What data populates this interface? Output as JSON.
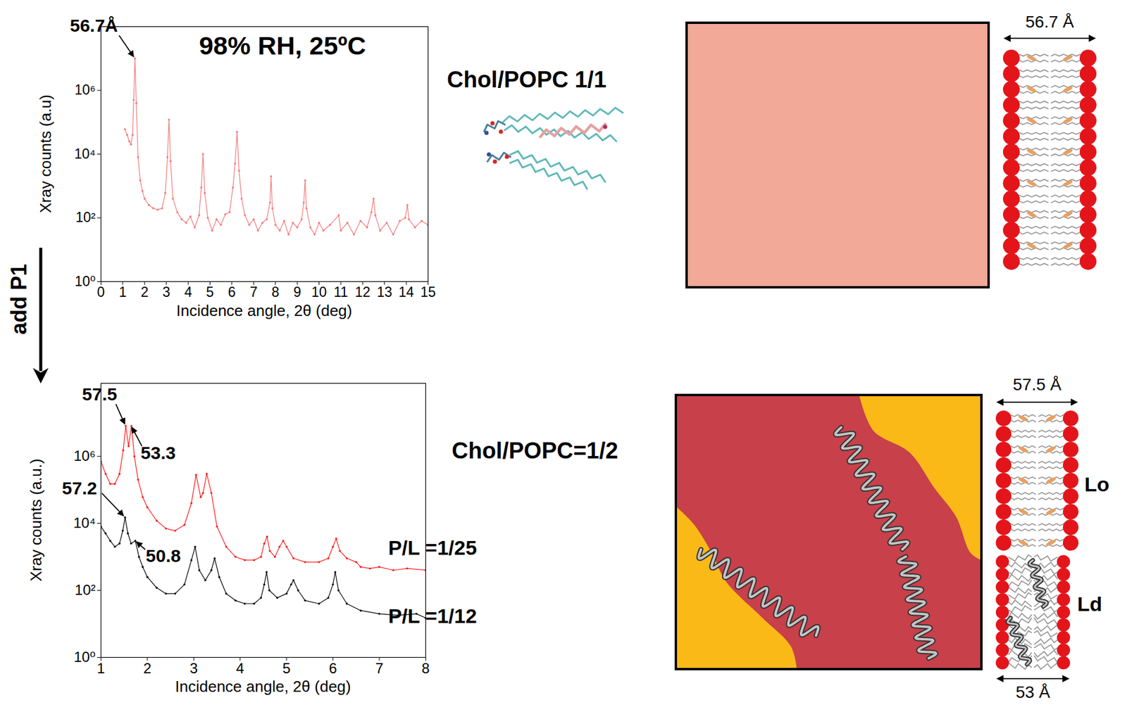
{
  "chart_data": [
    {
      "type": "line",
      "title": "98% RH, 25ºC",
      "xlabel": "Incidence angle, 2θ (deg)",
      "ylabel": "Xray counts (a.u)",
      "log": "y",
      "grid": false,
      "marker": "dot",
      "xlim": [
        0,
        15
      ],
      "xticks": [
        0,
        1,
        2,
        3,
        4,
        5,
        6,
        7,
        8,
        9,
        10,
        11,
        12,
        13,
        14,
        15
      ],
      "ylim": [
        1,
        100000000
      ],
      "yticks": [
        {
          "value": 1,
          "label": "10⁰"
        },
        {
          "value": 100,
          "label": "10²"
        },
        {
          "value": 10000,
          "label": "10⁴"
        },
        {
          "value": 1000000,
          "label": "10⁶"
        }
      ],
      "color": "#f47a7a",
      "x": [
        1.1,
        1.2,
        1.3,
        1.38,
        1.45,
        1.5,
        1.56,
        1.62,
        1.7,
        1.8,
        1.9,
        2.0,
        2.2,
        2.4,
        2.6,
        2.8,
        2.95,
        3.05,
        3.12,
        3.19,
        3.3,
        3.5,
        3.7,
        3.9,
        4.1,
        4.3,
        4.5,
        4.6,
        4.68,
        4.76,
        4.9,
        5.1,
        5.3,
        5.5,
        5.7,
        5.9,
        6.05,
        6.15,
        6.24,
        6.33,
        6.45,
        6.6,
        6.8,
        7.0,
        7.2,
        7.4,
        7.6,
        7.75,
        7.8,
        7.86,
        8.0,
        8.2,
        8.4,
        8.6,
        8.8,
        9.0,
        9.2,
        9.3,
        9.36,
        9.42,
        9.6,
        9.8,
        10.0,
        10.2,
        10.5,
        10.9,
        11.0,
        11.3,
        11.6,
        11.9,
        12.2,
        12.4,
        12.5,
        12.58,
        12.8,
        13.1,
        13.4,
        13.7,
        13.95,
        14.05,
        14.12,
        14.4,
        14.7,
        15.0
      ],
      "values": [
        60000,
        40000,
        25000,
        20000,
        40000,
        500000,
        10000000,
        400000,
        8000,
        1500,
        700,
        400,
        250,
        200,
        180,
        200,
        600,
        8000,
        120000,
        6000,
        400,
        150,
        90,
        70,
        110,
        50,
        120,
        900,
        10000,
        600,
        100,
        40,
        90,
        60,
        130,
        150,
        900,
        5000,
        50000,
        3000,
        400,
        120,
        60,
        90,
        40,
        70,
        90,
        300,
        2000,
        200,
        60,
        40,
        80,
        30,
        70,
        50,
        90,
        300,
        1500,
        200,
        50,
        30,
        70,
        40,
        60,
        120,
        40,
        70,
        30,
        80,
        50,
        150,
        400,
        120,
        40,
        70,
        30,
        80,
        100,
        250,
        90,
        50,
        80,
        60
      ],
      "annotations": [
        {
          "text": "56.7Å",
          "x": 1.56,
          "y": 10000000
        }
      ]
    },
    {
      "type": "line",
      "xlabel": "Incidence angle, 2θ (deg)",
      "ylabel": "Xray counts (a.u.)",
      "log": "y",
      "grid": false,
      "marker": "dot",
      "xlim": [
        1,
        8
      ],
      "xticks": [
        1,
        2,
        3,
        4,
        5,
        6,
        7,
        8
      ],
      "ylim": [
        1,
        150000000
      ],
      "yticks": [
        {
          "value": 1,
          "label": "10⁰"
        },
        {
          "value": 100,
          "label": "10²"
        },
        {
          "value": 10000,
          "label": "10⁴"
        },
        {
          "value": 1000000,
          "label": "10⁶"
        }
      ],
      "series": [
        {
          "name": "P/L =1/25",
          "color": "#ff1a1a",
          "x": [
            1.0,
            1.1,
            1.2,
            1.3,
            1.4,
            1.48,
            1.535,
            1.595,
            1.656,
            1.72,
            1.8,
            1.9,
            2.0,
            2.2,
            2.4,
            2.6,
            2.8,
            2.95,
            3.05,
            3.15,
            3.2,
            3.28,
            3.38,
            3.5,
            3.7,
            3.9,
            4.1,
            4.3,
            4.45,
            4.52,
            4.58,
            4.64,
            4.75,
            4.85,
            4.93,
            5.0,
            5.15,
            5.4,
            5.7,
            5.9,
            6.0,
            6.07,
            6.15,
            6.3,
            6.5,
            6.6,
            6.8,
            7.0,
            7.3,
            7.6,
            8.0
          ],
          "values": [
            700000,
            300000,
            150000,
            150000,
            300000,
            1500000,
            8000000,
            2000000,
            8000000,
            1000000,
            200000,
            60000,
            30000,
            12000,
            7000,
            6000,
            9000,
            40000,
            280000,
            60000,
            80000,
            300000,
            80000,
            8000,
            2000,
            1000,
            800,
            800,
            1000,
            2500,
            4000,
            1500,
            1000,
            2000,
            3000,
            2000,
            900,
            700,
            700,
            900,
            2000,
            3500,
            1500,
            900,
            700,
            500,
            450,
            500,
            400,
            450,
            400
          ]
        },
        {
          "name": "P/L =1/12",
          "color": "#000000",
          "x": [
            1.0,
            1.1,
            1.2,
            1.3,
            1.4,
            1.47,
            1.52,
            1.58,
            1.65,
            1.74,
            1.82,
            1.9,
            2.0,
            2.2,
            2.4,
            2.6,
            2.8,
            2.95,
            3.03,
            3.12,
            3.25,
            3.38,
            3.45,
            3.55,
            3.7,
            3.9,
            4.1,
            4.3,
            4.45,
            4.52,
            4.57,
            4.63,
            4.8,
            5.0,
            5.1,
            5.15,
            5.25,
            5.4,
            5.7,
            5.9,
            6.0,
            6.05,
            6.12,
            6.3,
            6.6,
            7.0,
            7.4,
            7.8,
            8.0
          ],
          "values": [
            8000,
            5000,
            3000,
            2000,
            2500,
            6000,
            15000,
            5000,
            2500,
            3000,
            1000,
            500,
            250,
            120,
            80,
            80,
            150,
            800,
            2000,
            400,
            200,
            400,
            900,
            250,
            80,
            50,
            40,
            40,
            60,
            150,
            350,
            100,
            60,
            80,
            150,
            200,
            100,
            50,
            40,
            60,
            150,
            350,
            100,
            40,
            25,
            20,
            18,
            20,
            15
          ]
        }
      ],
      "annotations": [
        {
          "text": "57.5",
          "x": 1.535,
          "y": 8000000
        },
        {
          "text": "53.3",
          "x": 1.656,
          "y": 8000000
        },
        {
          "text": "57.2",
          "x": 1.52,
          "y": 15000
        },
        {
          "text": "50.8",
          "x": 1.74,
          "y": 3000
        }
      ]
    }
  ],
  "diagram": {
    "arrow_label": "add P1",
    "before": {
      "label": "Chol/POPC 1/1",
      "thickness": "56.7 Å"
    },
    "after": {
      "label": "Chol/POPC=1/2",
      "lo_thickness": "57.5 Å",
      "ld_thickness": "53 Å",
      "lo_label": "Lo",
      "ld_label": "Ld"
    }
  }
}
